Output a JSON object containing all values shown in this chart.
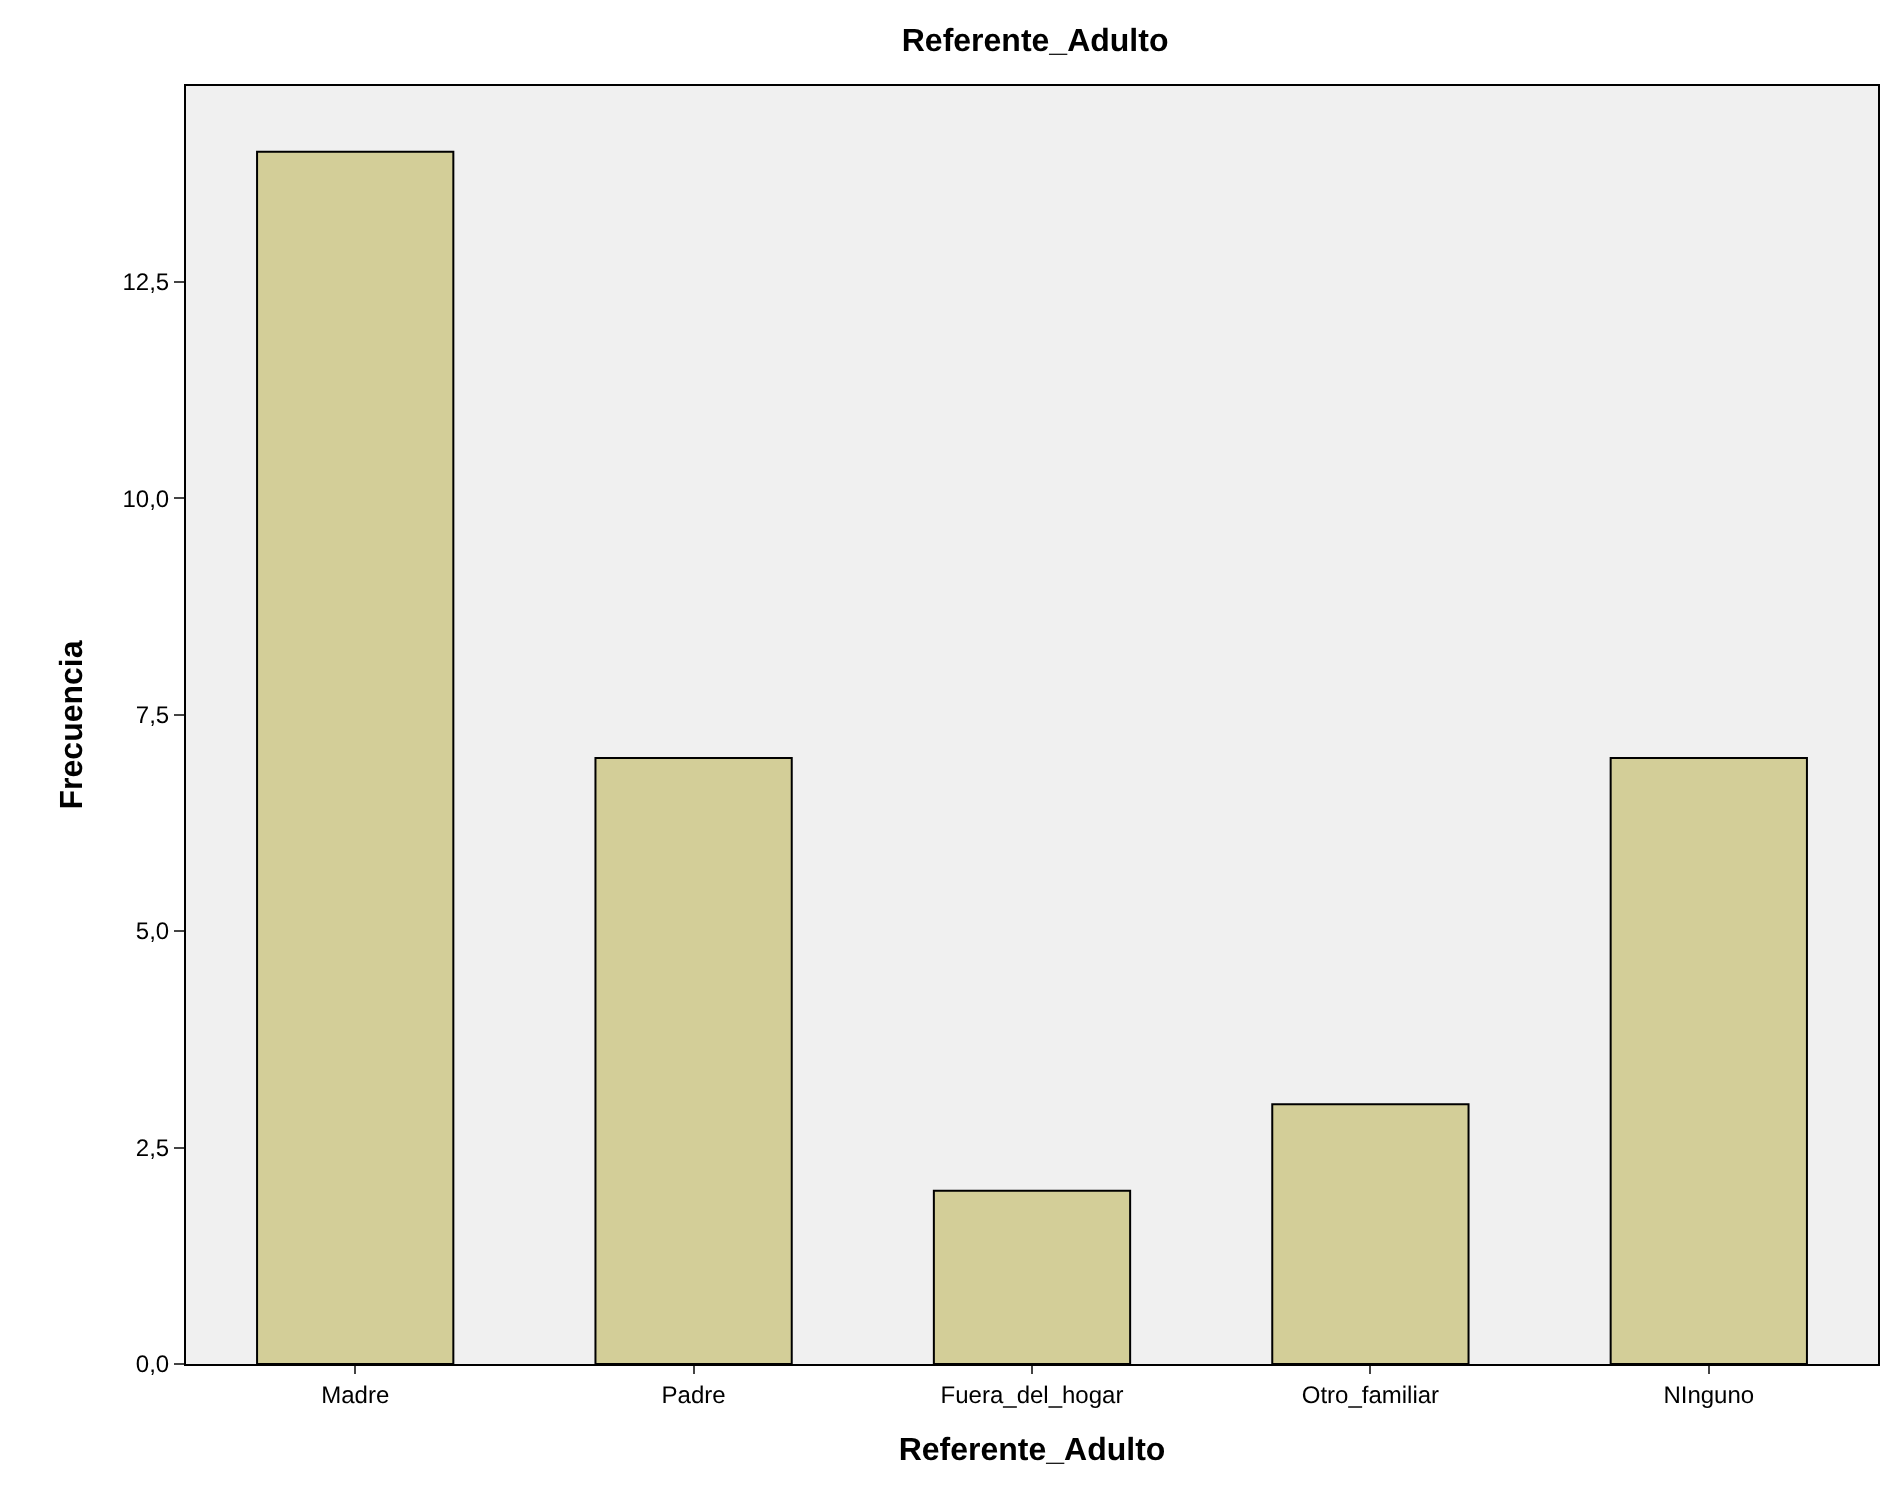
{
  "chart_data": {
    "type": "bar",
    "title": "Referente_Adulto",
    "xlabel": "Referente_Adulto",
    "ylabel": "Frecuencia",
    "categories": [
      "Madre",
      "Padre",
      "Fuera_del_hogar",
      "Otro_familiar",
      "NInguno"
    ],
    "values": [
      14,
      7,
      2,
      3,
      7
    ],
    "color": "#d3ce98",
    "ylim": [
      0,
      14.76
    ],
    "yticks": [
      {
        "value": 0,
        "label": "0,0"
      },
      {
        "value": 2.5,
        "label": "2,5"
      },
      {
        "value": 5,
        "label": "5,0"
      },
      {
        "value": 7.5,
        "label": "7,5"
      },
      {
        "value": 10,
        "label": "10,0"
      },
      {
        "value": 12.5,
        "label": "12,5"
      }
    ],
    "grid": false
  }
}
